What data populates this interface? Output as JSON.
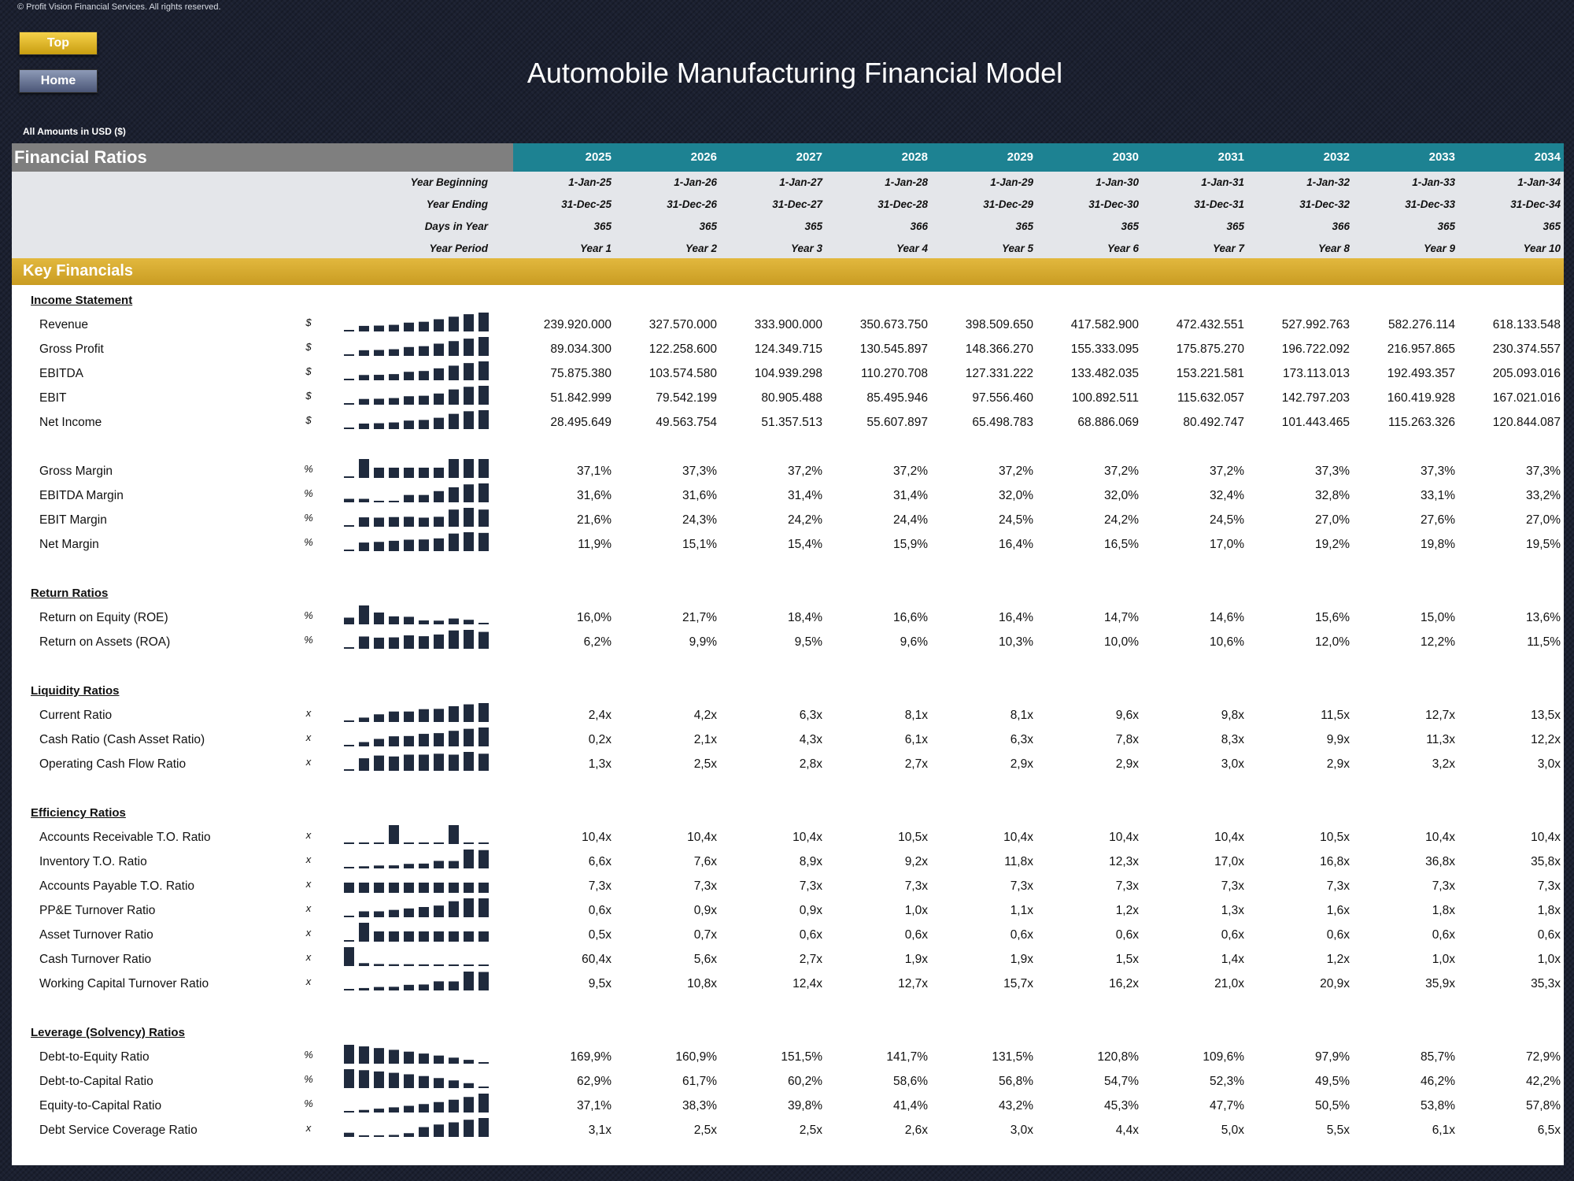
{
  "copyright": "© Profit Vision Financial Services. All rights reserved.",
  "buttons": {
    "top": "Top",
    "home": "Home"
  },
  "title": "Automobile Manufacturing Financial Model",
  "amounts_note": "All Amounts in  USD ($)",
  "header": {
    "title": "Financial Ratios",
    "years": [
      "2025",
      "2026",
      "2027",
      "2028",
      "2029",
      "2030",
      "2031",
      "2032",
      "2033",
      "2034"
    ]
  },
  "info_rows": [
    {
      "label": "Year Beginning",
      "values": [
        "1-Jan-25",
        "1-Jan-26",
        "1-Jan-27",
        "1-Jan-28",
        "1-Jan-29",
        "1-Jan-30",
        "1-Jan-31",
        "1-Jan-32",
        "1-Jan-33",
        "1-Jan-34"
      ]
    },
    {
      "label": "Year Ending",
      "values": [
        "31-Dec-25",
        "31-Dec-26",
        "31-Dec-27",
        "31-Dec-28",
        "31-Dec-29",
        "31-Dec-30",
        "31-Dec-31",
        "31-Dec-32",
        "31-Dec-33",
        "31-Dec-34"
      ]
    },
    {
      "label": "Days in Year",
      "values": [
        "365",
        "365",
        "365",
        "366",
        "365",
        "365",
        "365",
        "366",
        "365",
        "365"
      ]
    },
    {
      "label": "Year Period",
      "values": [
        "Year 1",
        "Year 2",
        "Year 3",
        "Year 4",
        "Year 5",
        "Year 6",
        "Year 7",
        "Year 8",
        "Year 9",
        "Year 10"
      ]
    }
  ],
  "key_financials": "Key Financials",
  "sections": [
    {
      "title": "Income Statement",
      "rows": [
        {
          "label": "Revenue",
          "unit": "$",
          "values": [
            "239.920.000",
            "327.570.000",
            "333.900.000",
            "350.673.750",
            "398.509.650",
            "417.582.900",
            "472.432.551",
            "527.992.763",
            "582.276.114",
            "618.133.548"
          ]
        },
        {
          "label": "Gross Profit",
          "unit": "$",
          "values": [
            "89.034.300",
            "122.258.600",
            "124.349.715",
            "130.545.897",
            "148.366.270",
            "155.333.095",
            "175.875.270",
            "196.722.092",
            "216.957.865",
            "230.374.557"
          ]
        },
        {
          "label": "EBITDA",
          "unit": "$",
          "values": [
            "75.875.380",
            "103.574.580",
            "104.939.298",
            "110.270.708",
            "127.331.222",
            "133.482.035",
            "153.221.581",
            "173.113.013",
            "192.493.357",
            "205.093.016"
          ]
        },
        {
          "label": "EBIT",
          "unit": "$",
          "values": [
            "51.842.999",
            "79.542.199",
            "80.905.488",
            "85.495.946",
            "97.556.460",
            "100.892.511",
            "115.632.057",
            "142.797.203",
            "160.419.928",
            "167.021.016"
          ]
        },
        {
          "label": "Net Income",
          "unit": "$",
          "values": [
            "28.495.649",
            "49.563.754",
            "51.357.513",
            "55.607.897",
            "65.498.783",
            "68.886.069",
            "80.492.747",
            "101.443.465",
            "115.263.326",
            "120.844.087"
          ]
        },
        {
          "spacer": true
        },
        {
          "label": "Gross Margin",
          "unit": "%",
          "values": [
            "37,1%",
            "37,3%",
            "37,2%",
            "37,2%",
            "37,2%",
            "37,2%",
            "37,2%",
            "37,3%",
            "37,3%",
            "37,3%"
          ]
        },
        {
          "label": "EBITDA Margin",
          "unit": "%",
          "values": [
            "31,6%",
            "31,6%",
            "31,4%",
            "31,4%",
            "32,0%",
            "32,0%",
            "32,4%",
            "32,8%",
            "33,1%",
            "33,2%"
          ]
        },
        {
          "label": "EBIT Margin",
          "unit": "%",
          "values": [
            "21,6%",
            "24,3%",
            "24,2%",
            "24,4%",
            "24,5%",
            "24,2%",
            "24,5%",
            "27,0%",
            "27,6%",
            "27,0%"
          ]
        },
        {
          "label": "Net Margin",
          "unit": "%",
          "values": [
            "11,9%",
            "15,1%",
            "15,4%",
            "15,9%",
            "16,4%",
            "16,5%",
            "17,0%",
            "19,2%",
            "19,8%",
            "19,5%"
          ]
        }
      ]
    },
    {
      "title": "Return Ratios",
      "rows": [
        {
          "label": "Return on Equity (ROE)",
          "unit": "%",
          "values": [
            "16,0%",
            "21,7%",
            "18,4%",
            "16,6%",
            "16,4%",
            "14,7%",
            "14,6%",
            "15,6%",
            "15,0%",
            "13,6%"
          ]
        },
        {
          "label": "Return on Assets (ROA)",
          "unit": "%",
          "values": [
            "6,2%",
            "9,9%",
            "9,5%",
            "9,6%",
            "10,3%",
            "10,0%",
            "10,6%",
            "12,0%",
            "12,2%",
            "11,5%"
          ]
        }
      ]
    },
    {
      "title": "Liquidity Ratios",
      "rows": [
        {
          "label": "Current Ratio",
          "unit": "x",
          "values": [
            "2,4x",
            "4,2x",
            "6,3x",
            "8,1x",
            "8,1x",
            "9,6x",
            "9,8x",
            "11,5x",
            "12,7x",
            "13,5x"
          ]
        },
        {
          "label": "Cash Ratio (Cash Asset Ratio)",
          "unit": "x",
          "values": [
            "0,2x",
            "2,1x",
            "4,3x",
            "6,1x",
            "6,3x",
            "7,8x",
            "8,3x",
            "9,9x",
            "11,3x",
            "12,2x"
          ]
        },
        {
          "label": "Operating Cash Flow Ratio",
          "unit": "x",
          "values": [
            "1,3x",
            "2,5x",
            "2,8x",
            "2,7x",
            "2,9x",
            "2,9x",
            "3,0x",
            "2,9x",
            "3,2x",
            "3,0x"
          ]
        }
      ]
    },
    {
      "title": "Efficiency Ratios",
      "rows": [
        {
          "label": "Accounts Receivable T.O. Ratio",
          "unit": "x",
          "values": [
            "10,4x",
            "10,4x",
            "10,4x",
            "10,5x",
            "10,4x",
            "10,4x",
            "10,4x",
            "10,5x",
            "10,4x",
            "10,4x"
          ]
        },
        {
          "label": "Inventory T.O. Ratio",
          "unit": "x",
          "values": [
            "6,6x",
            "7,6x",
            "8,9x",
            "9,2x",
            "11,8x",
            "12,3x",
            "17,0x",
            "16,8x",
            "36,8x",
            "35,8x"
          ]
        },
        {
          "label": "Accounts Payable T.O. Ratio",
          "unit": "x",
          "values": [
            "7,3x",
            "7,3x",
            "7,3x",
            "7,3x",
            "7,3x",
            "7,3x",
            "7,3x",
            "7,3x",
            "7,3x",
            "7,3x"
          ]
        },
        {
          "label": "PP&E Turnover Ratio",
          "unit": "x",
          "values": [
            "0,6x",
            "0,9x",
            "0,9x",
            "1,0x",
            "1,1x",
            "1,2x",
            "1,3x",
            "1,6x",
            "1,8x",
            "1,8x"
          ]
        },
        {
          "label": "Asset Turnover Ratio",
          "unit": "x",
          "values": [
            "0,5x",
            "0,7x",
            "0,6x",
            "0,6x",
            "0,6x",
            "0,6x",
            "0,6x",
            "0,6x",
            "0,6x",
            "0,6x"
          ]
        },
        {
          "label": "Cash Turnover Ratio",
          "unit": "x",
          "values": [
            "60,4x",
            "5,6x",
            "2,7x",
            "1,9x",
            "1,9x",
            "1,5x",
            "1,4x",
            "1,2x",
            "1,0x",
            "1,0x"
          ]
        },
        {
          "label": "Working Capital Turnover Ratio",
          "unit": "x",
          "values": [
            "9,5x",
            "10,8x",
            "12,4x",
            "12,7x",
            "15,7x",
            "16,2x",
            "21,0x",
            "20,9x",
            "35,9x",
            "35,3x"
          ]
        }
      ]
    },
    {
      "title": "Leverage (Solvency) Ratios",
      "rows": [
        {
          "label": "Debt-to-Equity Ratio",
          "unit": "%",
          "values": [
            "169,9%",
            "160,9%",
            "151,5%",
            "141,7%",
            "131,5%",
            "120,8%",
            "109,6%",
            "97,9%",
            "85,7%",
            "72,9%"
          ]
        },
        {
          "label": "Debt-to-Capital Ratio",
          "unit": "%",
          "values": [
            "62,9%",
            "61,7%",
            "60,2%",
            "58,6%",
            "56,8%",
            "54,7%",
            "52,3%",
            "49,5%",
            "46,2%",
            "42,2%"
          ]
        },
        {
          "label": "Equity-to-Capital Ratio",
          "unit": "%",
          "values": [
            "37,1%",
            "38,3%",
            "39,8%",
            "41,4%",
            "43,2%",
            "45,3%",
            "47,7%",
            "50,5%",
            "53,8%",
            "57,8%"
          ]
        },
        {
          "label": "Debt Service Coverage Ratio",
          "unit": "x",
          "values": [
            "3,1x",
            "2,5x",
            "2,5x",
            "2,6x",
            "3,0x",
            "4,4x",
            "5,0x",
            "5,5x",
            "6,1x",
            "6,5x"
          ]
        }
      ]
    }
  ],
  "colors": {
    "year_header": "#1d8292",
    "key_band": "#d4a832",
    "sparkbar": "#1f2a3d"
  }
}
